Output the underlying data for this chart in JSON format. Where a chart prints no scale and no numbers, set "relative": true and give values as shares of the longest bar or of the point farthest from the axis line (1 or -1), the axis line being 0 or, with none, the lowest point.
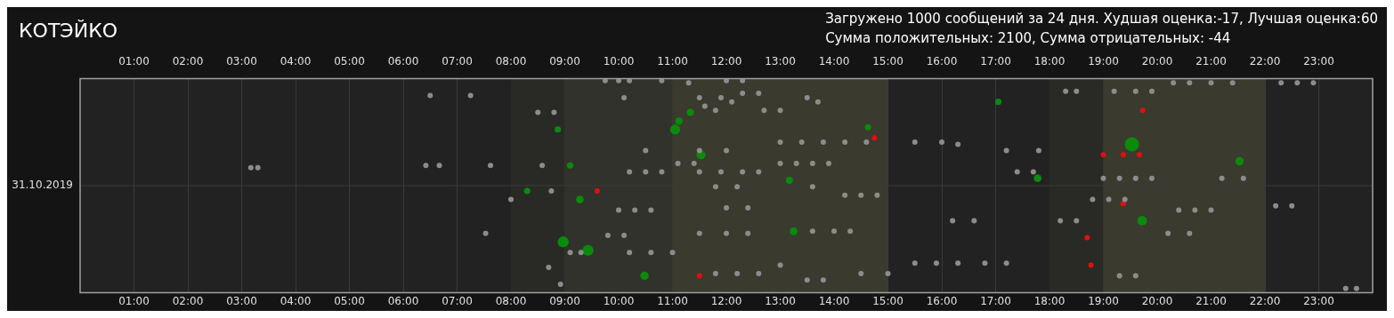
{
  "chart_data": {
    "type": "scatter",
    "title": "КОТЭЙКО",
    "subtitle": "Загружено 1000 сообщений за 24 дня. Худшая оценка:-17, Лучшая оценка:60\nСумма положительных: 2100, Сумма отрицательных: -44",
    "annotations": [
      "31.10.2019"
    ],
    "xlim": [
      0,
      24
    ],
    "xticks": [
      {
        "value": 1,
        "label": "01:00"
      },
      {
        "value": 2,
        "label": "02:00"
      },
      {
        "value": 3,
        "label": "03:00"
      },
      {
        "value": 4,
        "label": "04:00"
      },
      {
        "value": 5,
        "label": "05:00"
      },
      {
        "value": 6,
        "label": "06:00"
      },
      {
        "value": 7,
        "label": "07:00"
      },
      {
        "value": 8,
        "label": "08:00"
      },
      {
        "value": 9,
        "label": "09:00"
      },
      {
        "value": 10,
        "label": "10:00"
      },
      {
        "value": 11,
        "label": "11:00"
      },
      {
        "value": 12,
        "label": "12:00"
      },
      {
        "value": 13,
        "label": "13:00"
      },
      {
        "value": 14,
        "label": "14:00"
      },
      {
        "value": 15,
        "label": "15:00"
      },
      {
        "value": 16,
        "label": "16:00"
      },
      {
        "value": 17,
        "label": "17:00"
      },
      {
        "value": 18,
        "label": "18:00"
      },
      {
        "value": 19,
        "label": "19:00"
      },
      {
        "value": 20,
        "label": "20:00"
      },
      {
        "value": 21,
        "label": "21:00"
      },
      {
        "value": 22,
        "label": "22:00"
      },
      {
        "value": 23,
        "label": "23:00"
      }
    ],
    "x2lim": [
      0,
      24
    ],
    "x2ticks": [
      {
        "value": 1,
        "label": "01:00"
      },
      {
        "value": 2,
        "label": "02:00"
      },
      {
        "value": 3,
        "label": "03:00"
      },
      {
        "value": 4,
        "label": "04:00"
      },
      {
        "value": 5,
        "label": "05:00"
      },
      {
        "value": 6,
        "label": "06:00"
      },
      {
        "value": 7,
        "label": "07:00"
      },
      {
        "value": 8,
        "label": "08:00"
      },
      {
        "value": 9,
        "label": "09:00"
      },
      {
        "value": 10,
        "label": "10:00"
      },
      {
        "value": 11,
        "label": "11:00"
      },
      {
        "value": 12,
        "label": "12:00"
      },
      {
        "value": 13,
        "label": "13:00"
      },
      {
        "value": 14,
        "label": "14:00"
      },
      {
        "value": 15,
        "label": "15:00"
      },
      {
        "value": 16,
        "label": "16:00"
      },
      {
        "value": 17,
        "label": "17:00"
      },
      {
        "value": 18,
        "label": "18:00"
      },
      {
        "value": 19,
        "label": "19:00"
      },
      {
        "value": 20,
        "label": "20:00"
      },
      {
        "value": 21,
        "label": "21:00"
      },
      {
        "value": 22,
        "label": "22:00"
      },
      {
        "value": 23,
        "label": "23:00"
      }
    ],
    "relative": true,
    "grid": true,
    "legend": false,
    "marker": "circle",
    "bands": [
      {
        "axis": "x",
        "from": 8,
        "to": 9,
        "color": "#292a26"
      },
      {
        "axis": "x",
        "from": 9,
        "to": 11,
        "color": "#31322b"
      },
      {
        "axis": "x",
        "from": 11,
        "to": 15,
        "color": "#3a3a2f"
      },
      {
        "axis": "x",
        "from": 18,
        "to": 19,
        "color": "#292a26"
      },
      {
        "axis": "x",
        "from": 19,
        "to": 22,
        "color": "#3a3a2f"
      }
    ],
    "series": [
      {
        "type": "scatter",
        "color": "#8c8c8c",
        "x": [
          6.5,
          7.25,
          3.17,
          3.3,
          6.42,
          6.67,
          7.62,
          7.53,
          8.5,
          8.8,
          8.0,
          8.75,
          8.58,
          8.7,
          8.92,
          9.75,
          10.0,
          10.2,
          10.8,
          11.3,
          12.0,
          12.3,
          20.3,
          20.6,
          21.0,
          21.4,
          22.3,
          22.6,
          22.9,
          19.2,
          19.6,
          19.9,
          18.3,
          18.5,
          12.3,
          12.6,
          11.5,
          11.9,
          12.1,
          13.5,
          13.7,
          10.1,
          12.7,
          13.0,
          11.6,
          11.8,
          13.0,
          13.4,
          13.8,
          14.2,
          14.6,
          15.5,
          16.0,
          16.3,
          10.5,
          11.5,
          12.0,
          17.2,
          17.8,
          13.0,
          13.3,
          13.6,
          13.9,
          11.1,
          11.4,
          10.2,
          10.5,
          10.8,
          11.5,
          11.9,
          12.3,
          12.6,
          17.4,
          17.7,
          19.0,
          19.3,
          19.6,
          19.9,
          21.2,
          21.6,
          11.8,
          12.2,
          13.6,
          14.2,
          14.5,
          14.8,
          18.8,
          19.1,
          19.4,
          10.0,
          10.3,
          10.6,
          12.0,
          12.4,
          20.4,
          20.7,
          21.0,
          22.2,
          22.5,
          16.2,
          16.6,
          18.2,
          18.5,
          11.5,
          12.0,
          12.4,
          13.6,
          14.0,
          14.3,
          20.2,
          20.6,
          9.8,
          10.1,
          10.2,
          10.6,
          11.0,
          9.1,
          9.3,
          15.5,
          15.9,
          16.3,
          16.8,
          17.2,
          13.0,
          11.8,
          12.2,
          12.6,
          14.5,
          15.0,
          13.5,
          13.8,
          19.3,
          19.6,
          23.5,
          23.7
        ],
        "values": [
          0.93,
          0.93,
          0.59,
          0.59,
          0.6,
          0.6,
          0.6,
          0.28,
          0.85,
          0.85,
          0.44,
          0.48,
          0.6,
          0.12,
          0.04,
          1,
          1,
          1,
          1,
          0.99,
          1,
          1,
          0.99,
          0.99,
          0.99,
          0.99,
          0.99,
          0.99,
          0.99,
          0.95,
          0.95,
          0.95,
          0.95,
          0.95,
          0.94,
          0.94,
          0.92,
          0.92,
          0.9,
          0.92,
          0.9,
          0.92,
          0.86,
          0.86,
          0.88,
          0.86,
          0.71,
          0.71,
          0.71,
          0.71,
          0.71,
          0.71,
          0.71,
          0.7,
          0.67,
          0.67,
          0.67,
          0.67,
          0.67,
          0.61,
          0.61,
          0.61,
          0.61,
          0.61,
          0.61,
          0.57,
          0.57,
          0.57,
          0.57,
          0.57,
          0.57,
          0.57,
          0.57,
          0.57,
          0.54,
          0.54,
          0.54,
          0.54,
          0.54,
          0.54,
          0.5,
          0.5,
          0.5,
          0.46,
          0.46,
          0.46,
          0.44,
          0.44,
          0.44,
          0.39,
          0.39,
          0.39,
          0.4,
          0.4,
          0.39,
          0.39,
          0.39,
          0.41,
          0.41,
          0.34,
          0.34,
          0.34,
          0.34,
          0.28,
          0.28,
          0.28,
          0.29,
          0.29,
          0.29,
          0.28,
          0.28,
          0.27,
          0.27,
          0.19,
          0.19,
          0.19,
          0.19,
          0.19,
          0.14,
          0.14,
          0.14,
          0.14,
          0.14,
          0.13,
          0.09,
          0.09,
          0.09,
          0.09,
          0.09,
          0.06,
          0.06,
          0.08,
          0.08,
          0.02,
          0.02
        ]
      },
      {
        "type": "scatter",
        "color": "#e01010",
        "x": [
          9.6,
          19.0,
          19.37,
          19.67,
          18.7,
          18.77,
          19.73,
          19.37,
          14.75,
          11.5
        ],
        "values": [
          0.48,
          0.65,
          0.65,
          0.65,
          0.26,
          0.13,
          0.86,
          0.42,
          0.73,
          0.08
        ]
      },
      {
        "type": "bubble",
        "color": "#0b8a0b",
        "x": [
          19.53,
          9.43,
          8.97,
          11.05,
          11.53,
          13.25,
          19.72,
          21.53,
          17.78,
          10.48,
          9.28,
          8.3,
          8.87,
          13.17,
          11.12,
          11.33,
          9.1,
          17.05,
          14.63
        ],
        "values": [
          0.7,
          0.2,
          0.24,
          0.77,
          0.65,
          0.29,
          0.34,
          0.62,
          0.54,
          0.08,
          0.44,
          0.48,
          0.77,
          0.53,
          0.81,
          0.85,
          0.6,
          0.9,
          0.78
        ],
        "sizes": [
          1,
          0.6,
          0.6,
          0.5,
          0.4,
          0.3,
          0.45,
          0.35,
          0.3,
          0.35,
          0.3,
          0.2,
          0.2,
          0.25,
          0.25,
          0.25,
          0.2,
          0.2,
          0.2
        ]
      }
    ]
  }
}
